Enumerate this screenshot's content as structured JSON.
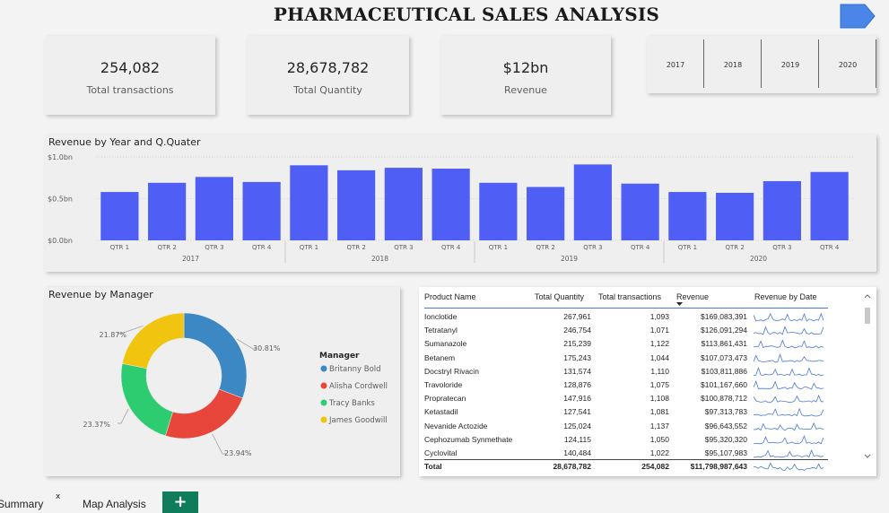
{
  "title": "PHARMACEUTICAL SALES ANALYSIS",
  "kpis": [
    {
      "value": "254,082",
      "label": "Total transactions"
    },
    {
      "value": "28,678,782",
      "label": "Total Quantity"
    },
    {
      "value": "$12bn",
      "label": "Revenue"
    }
  ],
  "year_slicer": [
    "2017",
    "2018",
    "2019",
    "2020"
  ],
  "bar_chart": {
    "title": "Revenue by Year and Q.Quater",
    "bar_color": "#4f5ff5",
    "y_ticks": [
      "$1.0bn",
      "$0.5bn",
      "$0.0bn"
    ]
  },
  "donut": {
    "title": "Revenue by Manager",
    "legend_title": "Manager"
  },
  "table": {
    "headers": [
      "Product Name",
      "Total Quantity",
      "Total transactions",
      "Revenue",
      "Revenue by Date"
    ],
    "rows": [
      [
        "Ionclotide",
        "267,961",
        "1,093",
        "$169,083,391"
      ],
      [
        "Tetratanyl",
        "246,754",
        "1,071",
        "$126,091,294"
      ],
      [
        "Sumanazole",
        "215,239",
        "1,122",
        "$113,861,431"
      ],
      [
        "Betanem",
        "175,243",
        "1,044",
        "$107,073,473"
      ],
      [
        "Docstryl Rivacin",
        "131,574",
        "1,110",
        "$103,811,886"
      ],
      [
        "Travoloride",
        "128,876",
        "1,075",
        "$101,167,660"
      ],
      [
        "Propratecan",
        "147,916",
        "1,108",
        "$100,878,712"
      ],
      [
        "Ketastadil",
        "127,541",
        "1,081",
        "$97,313,783"
      ],
      [
        "Nevanide Actozide",
        "125,024",
        "1,137",
        "$96,643,552"
      ],
      [
        "Cephozumab Synmethate",
        "124,115",
        "1,050",
        "$95,320,320"
      ],
      [
        "Cyclovital",
        "140,484",
        "1,022",
        "$95,107,983"
      ]
    ],
    "total": [
      "Total",
      "28,678,782",
      "254,082",
      "$11,798,987,643"
    ],
    "sparkline_color": "#4a78d6"
  },
  "tabs": {
    "summary": "Summary",
    "close": "x",
    "map": "Map Analysis",
    "add": "+"
  },
  "chart_data": [
    {
      "type": "bar",
      "title": "Revenue by Year and Q.Quater",
      "xlabel": "",
      "ylabel": "",
      "ylim": [
        0,
        1.0
      ],
      "y_unit": "$bn",
      "categories": [
        "QTR 1",
        "QTR 2",
        "QTR 3",
        "QTR 4",
        "QTR 1",
        "QTR 2",
        "QTR 3",
        "QTR 4",
        "QTR 1",
        "QTR 2",
        "QTR 3",
        "QTR 4",
        "QTR 1",
        "QTR 2",
        "QTR 3",
        "QTR 4"
      ],
      "groups": [
        {
          "label": "2017",
          "start": 0,
          "count": 4
        },
        {
          "label": "2018",
          "start": 4,
          "count": 4
        },
        {
          "label": "2019",
          "start": 8,
          "count": 4
        },
        {
          "label": "2020",
          "start": 12,
          "count": 4
        }
      ],
      "values": [
        0.58,
        0.69,
        0.76,
        0.7,
        0.9,
        0.84,
        0.87,
        0.86,
        0.69,
        0.64,
        0.91,
        0.68,
        0.58,
        0.57,
        0.71,
        0.82
      ],
      "grid": true,
      "legend": "none"
    },
    {
      "type": "pie",
      "title": "Revenue by Manager",
      "donut": true,
      "legend": "right",
      "slices": [
        {
          "name": "Britanny Bold",
          "value": 30.81,
          "label": "30.81%",
          "color": "#3b88c4"
        },
        {
          "name": "Alisha Cordwell",
          "value": 23.94,
          "label": "23.94%",
          "color": "#e8463a"
        },
        {
          "name": "Tracy Banks",
          "value": 23.37,
          "label": "23.37%",
          "color": "#2ecc71"
        },
        {
          "name": "James Goodwill",
          "value": 21.87,
          "label": "21.87%",
          "color": "#f1c40f"
        }
      ]
    }
  ]
}
